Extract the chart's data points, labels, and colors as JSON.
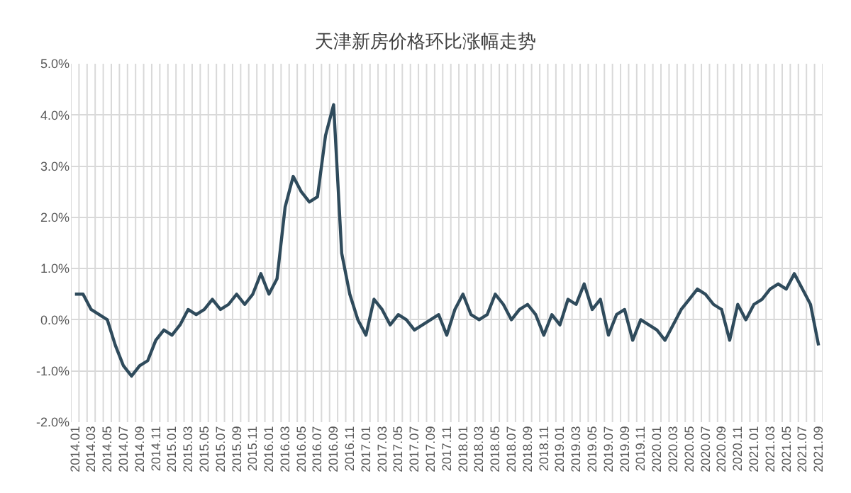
{
  "chart_data": {
    "type": "line",
    "title": "天津新房价格环比涨幅走势",
    "categories": [
      "2014.01",
      null,
      "2014.03",
      null,
      "2014.05",
      null,
      "2014.07",
      null,
      "2014.09",
      null,
      "2014.11",
      null,
      "2015.01",
      null,
      "2015.03",
      null,
      "2015.05",
      null,
      "2015.07",
      null,
      "2015.09",
      null,
      "2015.11",
      null,
      "2016.01",
      null,
      "2016.03",
      null,
      "2016.05",
      null,
      "2016.07",
      null,
      "2016.09",
      null,
      "2016.11",
      null,
      "2017.01",
      null,
      "2017.03",
      null,
      "2017.05",
      null,
      "2017.07",
      null,
      "2017.09",
      null,
      "2017.11",
      null,
      "2018.01",
      null,
      "2018.03",
      null,
      "2018.05",
      null,
      "2018.07",
      null,
      "2018.09",
      null,
      "2018.11",
      null,
      "2019.01",
      null,
      "2019.03",
      null,
      "2019.05",
      null,
      "2019.07",
      null,
      "2019.09",
      null,
      "2019.11",
      null,
      "2020.01",
      null,
      "2020.03",
      null,
      "2020.05",
      null,
      "2020.07",
      null,
      "2020.09",
      null,
      "2020.11",
      null,
      "2021.01",
      null,
      "2021.03",
      null,
      "2021.05",
      null,
      "2021.07",
      null,
      "2021.09"
    ],
    "series": [
      {
        "color": "#2f4b5c",
        "values": [
          0.5,
          0.5,
          0.2,
          0.1,
          0.0,
          -0.5,
          -0.9,
          -1.1,
          -0.9,
          -0.8,
          -0.4,
          -0.2,
          -0.3,
          -0.1,
          0.2,
          0.1,
          0.2,
          0.4,
          0.2,
          0.3,
          0.5,
          0.3,
          0.5,
          0.9,
          0.5,
          0.8,
          2.2,
          2.8,
          2.5,
          2.3,
          2.4,
          3.6,
          4.2,
          1.3,
          0.5,
          0.0,
          -0.3,
          0.4,
          0.2,
          -0.1,
          0.1,
          0.0,
          -0.2,
          -0.1,
          0.0,
          0.1,
          -0.3,
          0.2,
          0.5,
          0.1,
          0.0,
          0.1,
          0.5,
          0.3,
          0.0,
          0.2,
          0.3,
          0.1,
          -0.3,
          0.1,
          -0.1,
          0.4,
          0.3,
          0.7,
          0.2,
          0.4,
          -0.3,
          0.1,
          0.2,
          -0.4,
          0.0,
          -0.1,
          -0.2,
          -0.4,
          -0.1,
          0.2,
          0.4,
          0.6,
          0.5,
          0.3,
          0.2,
          -0.4,
          0.3,
          0.0,
          0.3,
          0.4,
          0.6,
          0.7,
          0.6,
          0.9,
          0.6,
          0.3,
          -0.5
        ]
      }
    ],
    "ylim": [
      -2,
      5
    ],
    "yticks": [
      {
        "value": -2,
        "label": "-2.0%"
      },
      {
        "value": -1,
        "label": "-1.0%"
      },
      {
        "value": 0,
        "label": "0.0%"
      },
      {
        "value": 1,
        "label": "1.0%"
      },
      {
        "value": 2,
        "label": "2.0%"
      },
      {
        "value": 3,
        "label": "3.0%"
      },
      {
        "value": 4,
        "label": "4.0%"
      },
      {
        "value": 5,
        "label": "5.0%"
      }
    ],
    "grid": true,
    "marker": "none",
    "line_style": "solid"
  }
}
